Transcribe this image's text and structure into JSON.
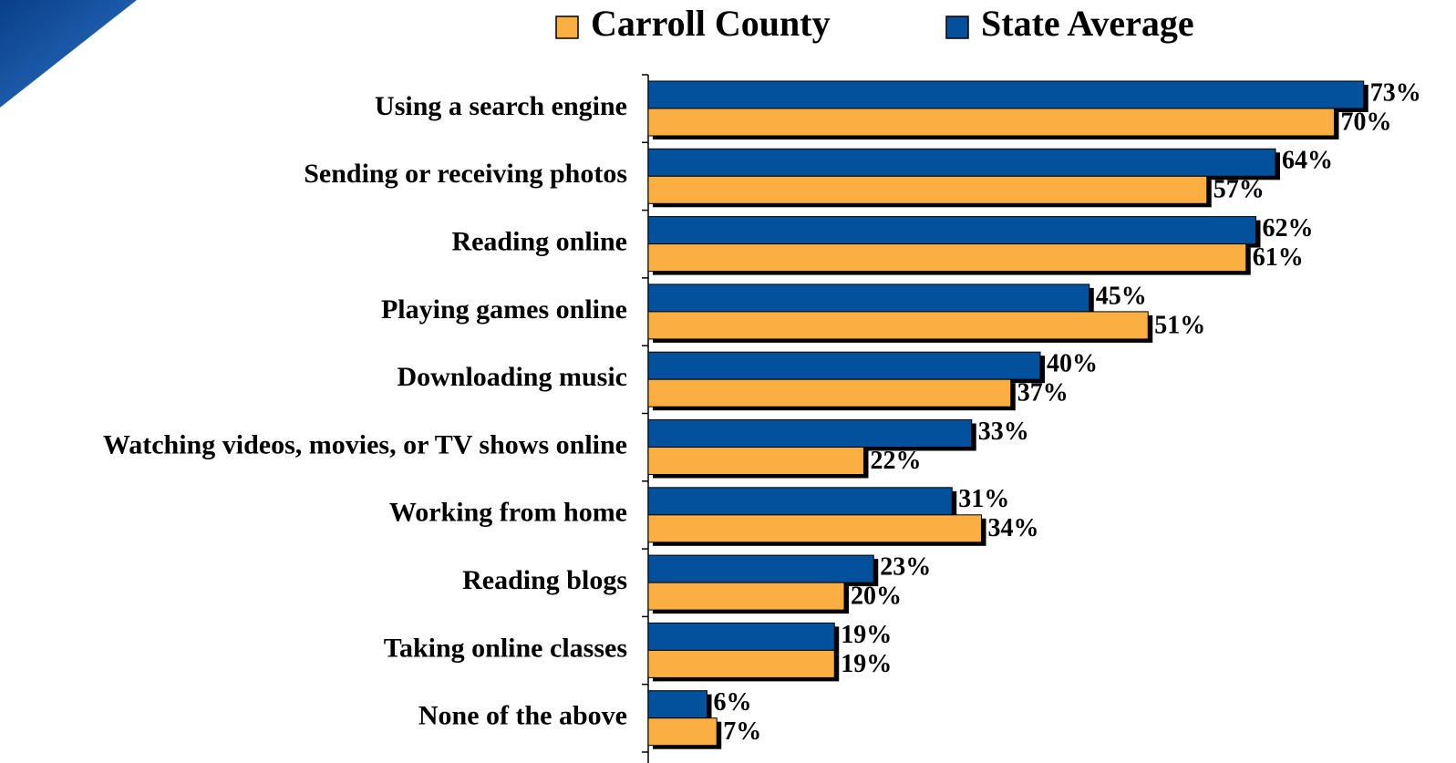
{
  "chart_data": {
    "type": "bar",
    "orientation": "horizontal",
    "categories": [
      "Using a search engine",
      "Sending or receiving photos",
      "Reading online",
      "Playing games online",
      "Downloading music",
      "Watching videos, movies, or TV shows online",
      "Working from home",
      "Reading blogs",
      "Taking online classes",
      "None of the above"
    ],
    "series": [
      {
        "name": "State Average",
        "color": "#03519c",
        "values": [
          73,
          64,
          62,
          45,
          40,
          33,
          31,
          23,
          19,
          6
        ],
        "value_labels": [
          "73%",
          "64%",
          "62%",
          "45%",
          "40%",
          "33%",
          "31%",
          "23%",
          "19%",
          "6%"
        ]
      },
      {
        "name": "Carroll County",
        "color": "#fcaf41",
        "values": [
          70,
          57,
          61,
          51,
          37,
          22,
          34,
          20,
          19,
          7
        ],
        "value_labels": [
          "70%",
          "57%",
          "61%",
          "51%",
          "37%",
          "22%",
          "34%",
          "20%",
          "19%",
          "7%"
        ]
      }
    ],
    "legend_order": [
      "Carroll County",
      "State Average"
    ],
    "legend": "top",
    "xlim": [
      0,
      80
    ]
  }
}
